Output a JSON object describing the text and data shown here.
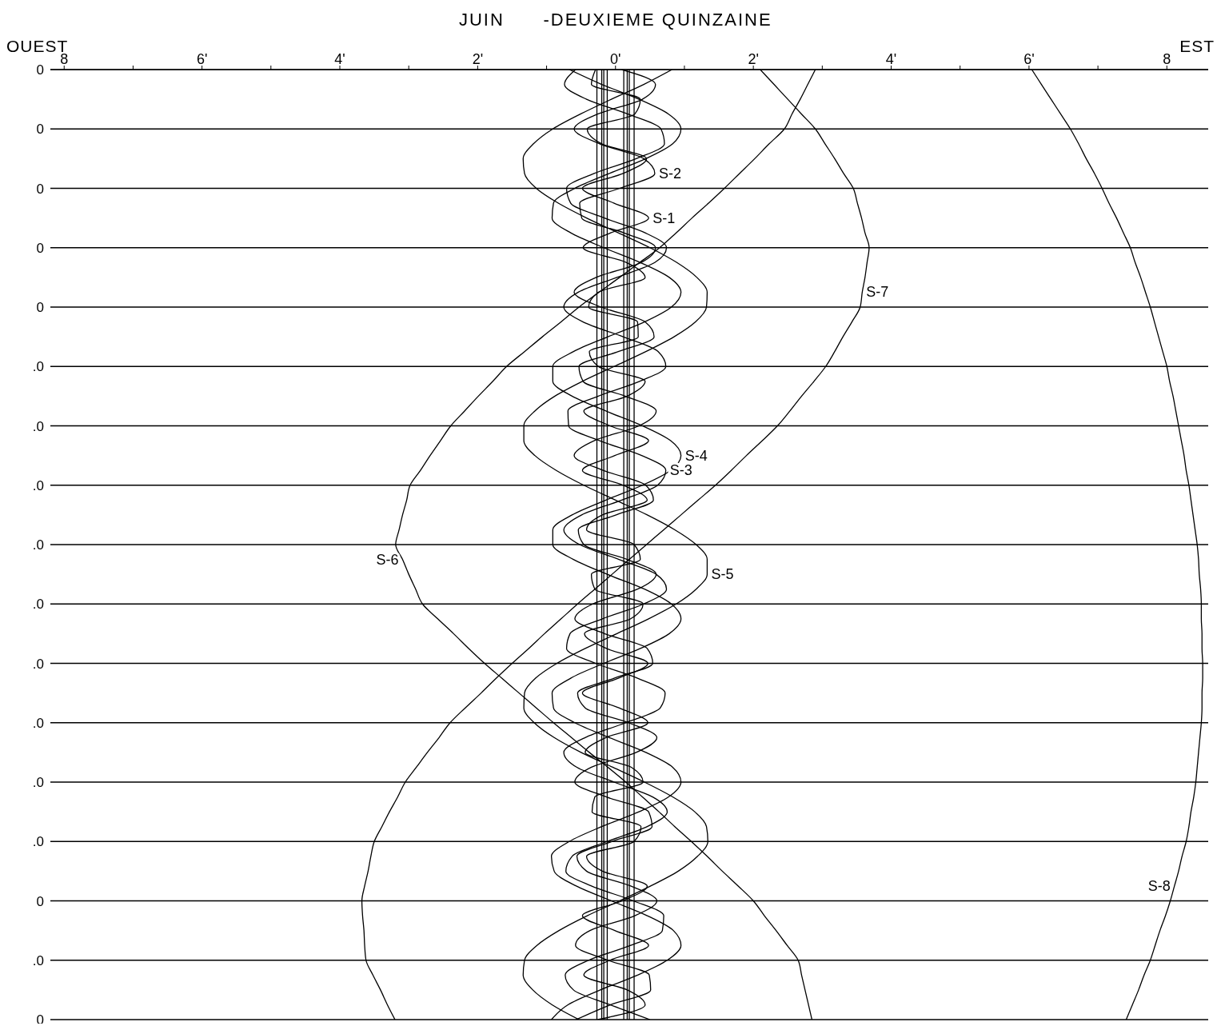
{
  "chart_data": {
    "type": "line",
    "title": "JUIN      -DEUXIEME QUINZAINE",
    "annotations": [
      "OUEST",
      "EST"
    ],
    "orientation": "horizontal",
    "categories": [
      "0",
      null,
      null,
      null,
      "0",
      null,
      null,
      null,
      "0",
      null,
      null,
      null,
      "0",
      null,
      null,
      null,
      "0",
      null,
      null,
      null,
      ".0",
      null,
      null,
      null,
      ".0",
      null,
      null,
      null,
      ".0",
      null,
      null,
      null,
      ".0",
      null,
      null,
      null,
      ".0",
      null,
      null,
      null,
      ".0",
      null,
      null,
      null,
      ".0",
      null,
      null,
      null,
      ".0",
      null,
      null,
      null,
      ".0",
      null,
      null,
      null,
      "0",
      null,
      null,
      null,
      ".0",
      null,
      null,
      null,
      "0"
    ],
    "xlim": [
      -8.2,
      8.6
    ],
    "xticks": [
      {
        "value": -8,
        "label": "8"
      },
      {
        "value": -7,
        "label": null
      },
      {
        "value": -6,
        "label": "6'"
      },
      {
        "value": -5,
        "label": null
      },
      {
        "value": -4,
        "label": "4'"
      },
      {
        "value": -3,
        "label": null
      },
      {
        "value": -2,
        "label": "2'"
      },
      {
        "value": -1,
        "label": null
      },
      {
        "value": 0,
        "label": "0'"
      },
      {
        "value": 1,
        "label": null
      },
      {
        "value": 2,
        "label": "2'"
      },
      {
        "value": 3,
        "label": null
      },
      {
        "value": 4,
        "label": "4'"
      },
      {
        "value": 5,
        "label": null
      },
      {
        "value": 6,
        "label": "6'"
      },
      {
        "value": 7,
        "label": null
      },
      {
        "value": 8,
        "label": "8"
      }
    ],
    "grid": "y",
    "legend": false,
    "marker": "none",
    "line_style": "solid",
    "ref_lines": [
      {
        "axis": "x",
        "value": -0.27,
        "color": "#000000"
      },
      {
        "axis": "x",
        "value": -0.2,
        "color": "#000000"
      },
      {
        "axis": "x",
        "value": -0.17,
        "color": "#000000"
      },
      {
        "axis": "x",
        "value": -0.12,
        "color": "#000000"
      },
      {
        "axis": "x",
        "value": 0.12,
        "color": "#000000"
      },
      {
        "axis": "x",
        "value": 0.17,
        "color": "#000000"
      },
      {
        "axis": "x",
        "value": 0.2,
        "color": "#000000"
      },
      {
        "axis": "x",
        "value": 0.27,
        "color": "#000000"
      }
    ],
    "series": [
      {
        "name": "S-1",
        "color": "#000000",
        "values": [
          -0.29,
          -0.35,
          0.36,
          0.28,
          -0.41,
          -0.2,
          0.45,
          0.11,
          -0.48,
          -0.02,
          0.48,
          -0.07,
          -0.47,
          0.16,
          0.43,
          -0.25,
          -0.39,
          0.32,
          0.33,
          -0.38,
          -0.25,
          0.43,
          0.17,
          -0.46,
          -0.08,
          0.48,
          -0.01,
          -0.48,
          0.11,
          0.46,
          -0.19,
          -0.42,
          0.27,
          0.36,
          -0.35,
          -0.3,
          0.4,
          0.22,
          -0.45,
          -0.13,
          0.47,
          0.04,
          -0.48,
          0.05,
          0.47,
          -0.14,
          -0.44,
          0.23,
          0.4,
          -0.3,
          -0.34,
          0.37,
          0.27,
          -0.42,
          -0.19,
          0.46,
          0.1,
          -0.48,
          -0.01,
          0.48,
          -0.08,
          -0.46,
          0.17,
          0.43,
          -0.26
        ]
      },
      {
        "name": "S-2",
        "color": "#000000",
        "values": [
          0.09,
          0.58,
          0.39,
          -0.26,
          -0.6,
          -0.23,
          0.41,
          0.57,
          0.06,
          -0.52,
          -0.49,
          0.12,
          0.58,
          0.37,
          -0.28,
          -0.6,
          -0.21,
          0.43,
          0.56,
          0.04,
          -0.53,
          -0.47,
          0.14,
          0.59,
          0.34,
          -0.31,
          -0.6,
          -0.18,
          0.44,
          0.55,
          0.01,
          -0.54,
          -0.46,
          0.17,
          0.59,
          0.32,
          -0.33,
          -0.59,
          -0.16,
          0.46,
          0.54,
          -0.02,
          -0.55,
          -0.44,
          0.19,
          0.6,
          0.3,
          -0.35,
          -0.59,
          -0.13,
          0.48,
          0.53,
          -0.05,
          -0.56,
          -0.42,
          0.22,
          0.6,
          0.28,
          -0.37,
          -0.58,
          -0.11,
          0.49,
          0.51,
          -0.07,
          -0.57
        ]
      },
      {
        "name": "S-3",
        "color": "#000000",
        "values": [
          -0.58,
          -0.74,
          -0.42,
          0.18,
          0.66,
          0.71,
          0.3,
          -0.31,
          -0.71,
          -0.65,
          -0.16,
          0.43,
          0.74,
          0.57,
          0.02,
          -0.54,
          -0.75,
          -0.47,
          0.11,
          0.62,
          0.73,
          0.35,
          -0.25,
          -0.69,
          -0.68,
          -0.23,
          0.38,
          0.73,
          0.61,
          0.09,
          -0.49,
          -0.75,
          -0.52,
          0.05,
          0.59,
          0.74,
          0.41,
          -0.19,
          -0.66,
          -0.71,
          -0.29,
          0.32,
          0.72,
          0.65,
          0.15,
          -0.44,
          -0.75,
          -0.56,
          -0.02,
          0.54,
          0.75,
          0.46,
          -0.12,
          -0.63,
          -0.72,
          -0.35,
          0.26,
          0.7,
          0.68,
          0.22,
          -0.39,
          -0.73,
          -0.61,
          -0.08,
          0.5
        ]
      },
      {
        "name": "S-4",
        "color": "#000000",
        "values": [
          -0.67,
          -0.2,
          0.34,
          0.77,
          0.95,
          0.83,
          0.44,
          -0.09,
          -0.59,
          -0.9,
          -0.92,
          -0.65,
          -0.17,
          0.36,
          0.78,
          0.95,
          0.81,
          0.42,
          -0.11,
          -0.61,
          -0.91,
          -0.91,
          -0.63,
          -0.14,
          0.39,
          0.8,
          0.95,
          0.8,
          0.39,
          -0.14,
          -0.63,
          -0.91,
          -0.91,
          -0.61,
          -0.12,
          0.42,
          0.81,
          0.95,
          0.78,
          0.36,
          -0.17,
          -0.65,
          -0.92,
          -0.9,
          -0.59,
          -0.09,
          0.44,
          0.83,
          0.95,
          0.77,
          0.34,
          -0.2,
          -0.67,
          -0.93,
          -0.89,
          -0.57,
          -0.06,
          0.46,
          0.84,
          0.95,
          0.75,
          0.32,
          -0.22,
          -0.69,
          -0.93
        ]
      },
      {
        "name": "S-5",
        "color": "#000000",
        "values": [
          0.82,
          0.41,
          -0.06,
          -0.51,
          -0.91,
          -1.19,
          -1.34,
          -1.32,
          -1.15,
          -0.83,
          -0.42,
          0.04,
          0.5,
          0.89,
          1.18,
          1.33,
          1.32,
          1.16,
          0.85,
          0.44,
          -0.02,
          -0.48,
          -0.88,
          -1.17,
          -1.33,
          -1.33,
          -1.17,
          -0.86,
          -0.46,
          0,
          0.46,
          0.86,
          1.17,
          1.33,
          1.33,
          1.17,
          0.88,
          0.48,
          0.02,
          -0.44,
          -0.85,
          -1.16,
          -1.32,
          -1.33,
          -1.18,
          -0.89,
          -0.5,
          -0.04,
          0.42,
          0.83,
          1.15,
          1.32,
          1.34,
          1.19,
          0.91,
          0.51,
          0.06,
          -0.41,
          -0.82,
          -1.14,
          -1.32,
          -1.34,
          -1.2,
          -0.92,
          -0.53
        ]
      },
      {
        "name": "S-6",
        "color": "#000000",
        "values": [
          2.9,
          2.79,
          2.68,
          2.56,
          2.45,
          2.23,
          2.02,
          1.8,
          1.58,
          1.35,
          1.11,
          0.88,
          0.64,
          0.35,
          0.06,
          -0.24,
          -0.53,
          -0.79,
          -1.06,
          -1.32,
          -1.58,
          -1.78,
          -1.99,
          -2.19,
          -2.39,
          -2.54,
          -2.69,
          -2.83,
          -2.98,
          -3.03,
          -3.09,
          -3.14,
          -3.19,
          -3.09,
          -3.0,
          -2.9,
          -2.8,
          -2.58,
          -2.35,
          -2.13,
          -1.9,
          -1.65,
          -1.4,
          -1.15,
          -0.9,
          -0.64,
          -0.38,
          -0.11,
          0.15,
          0.39,
          0.63,
          0.86,
          1.1,
          1.33,
          1.55,
          1.78,
          2.0,
          2.16,
          2.33,
          2.49,
          2.65,
          2.7,
          2.75,
          2.8,
          2.85
        ]
      },
      {
        "name": "S-7",
        "color": "#000000",
        "values": [
          2.1,
          2.3,
          2.5,
          2.7,
          2.9,
          3.04,
          3.18,
          3.31,
          3.45,
          3.51,
          3.57,
          3.62,
          3.68,
          3.65,
          3.62,
          3.58,
          3.55,
          3.43,
          3.3,
          3.18,
          3.05,
          2.88,
          2.7,
          2.53,
          2.35,
          2.13,
          1.9,
          1.68,
          1.45,
          1.2,
          0.95,
          0.7,
          0.45,
          0.2,
          -0.05,
          -0.3,
          -0.55,
          -0.79,
          -1.03,
          -1.26,
          -1.5,
          -1.73,
          -1.95,
          -2.18,
          -2.4,
          -2.56,
          -2.73,
          -2.89,
          -3.05,
          -3.16,
          -3.28,
          -3.39,
          -3.5,
          -3.55,
          -3.59,
          -3.64,
          -3.68,
          -3.67,
          -3.65,
          -3.64,
          -3.62,
          -3.52,
          -3.41,
          -3.31,
          -3.2
        ]
      },
      {
        "name": "S-8",
        "color": "#000000",
        "values": [
          6.04,
          6.18,
          6.32,
          6.46,
          6.6,
          6.72,
          6.83,
          6.95,
          7.06,
          7.16,
          7.27,
          7.37,
          7.47,
          7.54,
          7.62,
          7.69,
          7.76,
          7.82,
          7.88,
          7.94,
          8.0,
          8.04,
          8.09,
          8.13,
          8.17,
          8.21,
          8.25,
          8.28,
          8.32,
          8.35,
          8.38,
          8.41,
          8.44,
          8.46,
          8.47,
          8.49,
          8.5,
          8.5,
          8.51,
          8.51,
          8.52,
          8.52,
          8.51,
          8.51,
          8.5,
          8.48,
          8.46,
          8.44,
          8.42,
          8.39,
          8.35,
          8.32,
          8.28,
          8.22,
          8.17,
          8.11,
          8.05,
          7.98,
          7.9,
          7.83,
          7.76,
          7.67,
          7.59,
          7.5,
          7.41
        ]
      }
    ]
  }
}
